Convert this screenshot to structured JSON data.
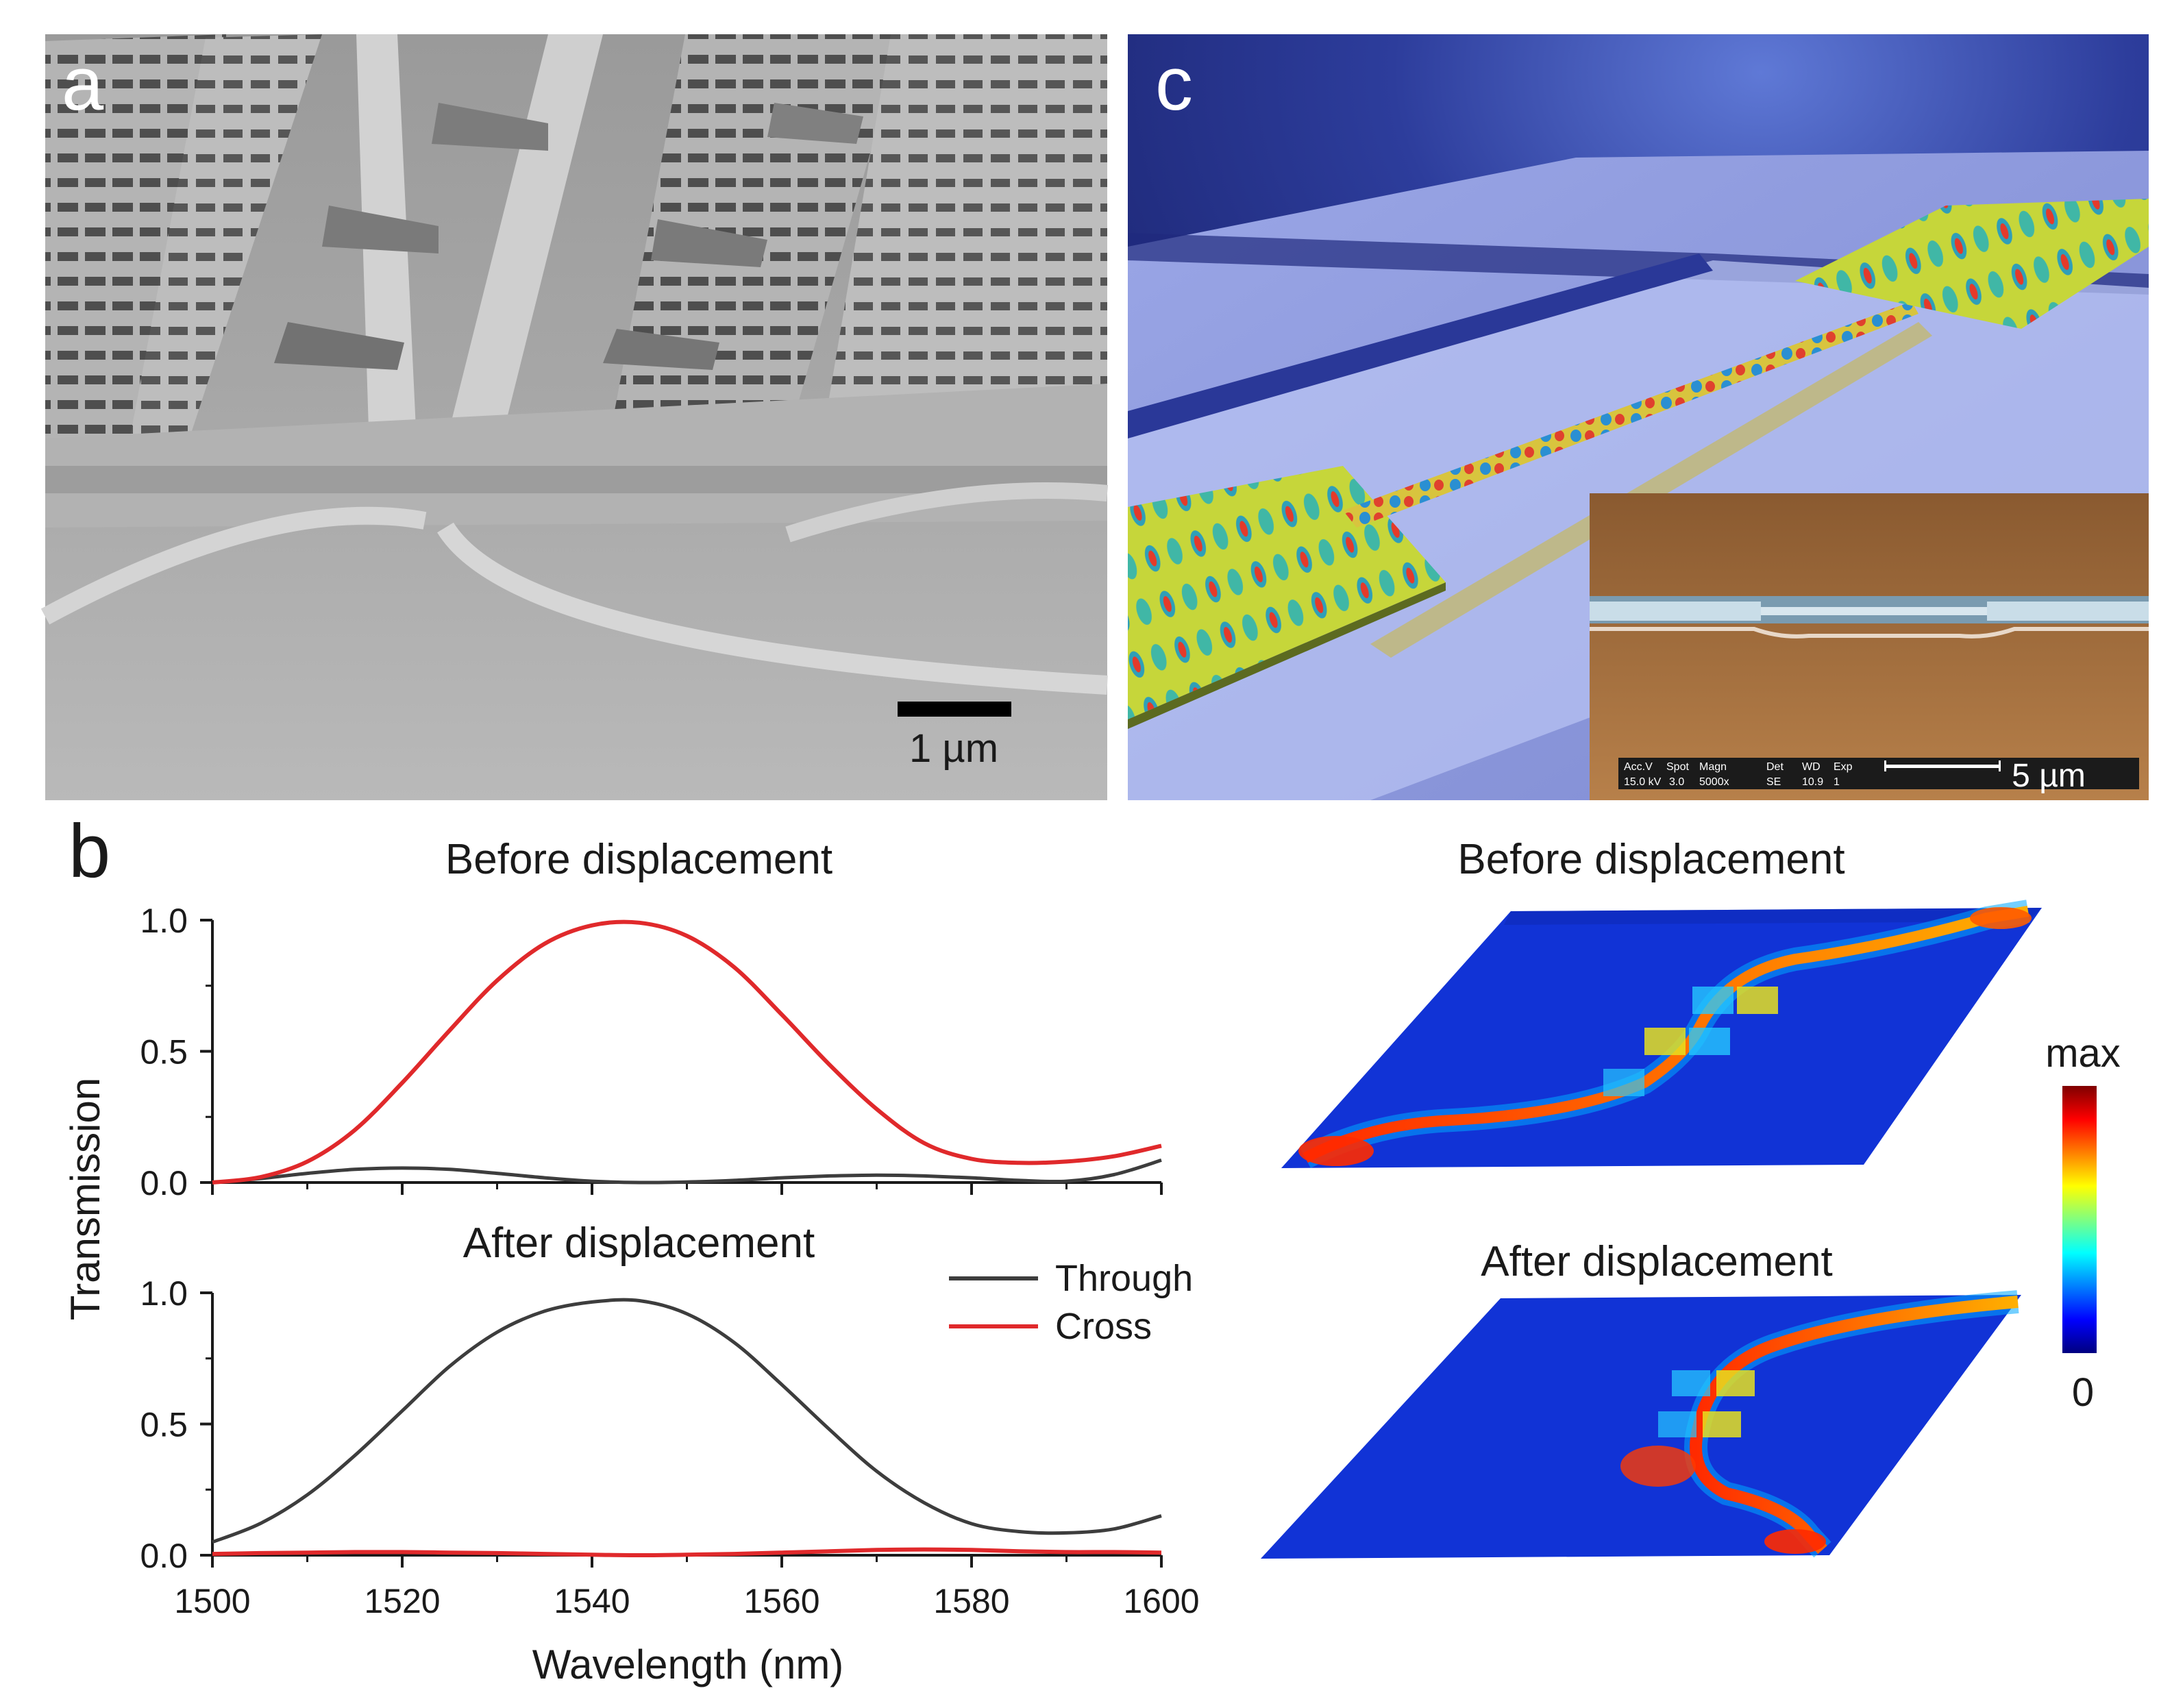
{
  "figure": {
    "panel_a": {
      "label": "a",
      "scalebar": "1 µm"
    },
    "panel_b": {
      "label": "b",
      "ylabel": "Transmission",
      "xlabel": "Wavelength (nm)",
      "legend": {
        "through": "Through",
        "cross": "Cross"
      },
      "colors": {
        "through": "#3d3d3d",
        "cross": "#e0292b"
      }
    },
    "panel_c": {
      "label": "c",
      "inset_readout": {
        "headers": [
          "Acc.V",
          "Spot",
          "Magn",
          "Det",
          "WD",
          "Exp"
        ],
        "values": [
          "15.0 kV",
          "3.0",
          "5000x",
          "SE",
          "10.9",
          "1"
        ]
      },
      "inset_scalebar": "5 µm"
    },
    "field_maps": {
      "top_title": "Before displacement",
      "bottom_title": "After displacement",
      "colorbar_max": "max",
      "colorbar_min": "0"
    }
  },
  "chart_data": [
    {
      "type": "line",
      "title": "Before displacement",
      "xlabel": "Wavelength (nm)",
      "ylabel": "Transmission",
      "xlim": [
        1500,
        1600
      ],
      "ylim": [
        0,
        1.0
      ],
      "xticks": [
        1500,
        1520,
        1540,
        1560,
        1580,
        1600
      ],
      "yticks": [
        0.0,
        0.5,
        1.0
      ],
      "yticklabels": [
        "0.0",
        "0.5",
        "1.0"
      ],
      "x": [
        1500,
        1505,
        1510,
        1515,
        1520,
        1525,
        1530,
        1535,
        1540,
        1545,
        1550,
        1555,
        1560,
        1565,
        1570,
        1575,
        1580,
        1585,
        1590,
        1595,
        1600
      ],
      "series": [
        {
          "name": "Through",
          "values": [
            0.0,
            0.015,
            0.035,
            0.05,
            0.055,
            0.05,
            0.035,
            0.018,
            0.005,
            0.0,
            0.002,
            0.008,
            0.018,
            0.025,
            0.028,
            0.025,
            0.018,
            0.008,
            0.005,
            0.03,
            0.085
          ]
        },
        {
          "name": "Cross",
          "values": [
            0.0,
            0.02,
            0.08,
            0.2,
            0.38,
            0.58,
            0.77,
            0.91,
            0.98,
            0.99,
            0.94,
            0.82,
            0.64,
            0.45,
            0.28,
            0.15,
            0.09,
            0.075,
            0.08,
            0.1,
            0.14
          ]
        }
      ]
    },
    {
      "type": "line",
      "title": "After displacement",
      "xlabel": "Wavelength (nm)",
      "ylabel": "Transmission",
      "xlim": [
        1500,
        1600
      ],
      "ylim": [
        0,
        1.0
      ],
      "xticks": [
        1500,
        1520,
        1540,
        1560,
        1580,
        1600
      ],
      "xticklabels": [
        "1500",
        "1520",
        "1540",
        "1560",
        "1580",
        "1600"
      ],
      "yticks": [
        0.0,
        0.5,
        1.0
      ],
      "yticklabels": [
        "0.0",
        "0.5",
        "1.0"
      ],
      "legend": "top-right",
      "x": [
        1500,
        1505,
        1510,
        1515,
        1520,
        1525,
        1530,
        1535,
        1540,
        1545,
        1550,
        1555,
        1560,
        1565,
        1570,
        1575,
        1580,
        1585,
        1590,
        1595,
        1600
      ],
      "series": [
        {
          "name": "Through",
          "values": [
            0.05,
            0.12,
            0.23,
            0.38,
            0.55,
            0.72,
            0.85,
            0.93,
            0.965,
            0.97,
            0.92,
            0.81,
            0.65,
            0.48,
            0.32,
            0.2,
            0.12,
            0.09,
            0.085,
            0.1,
            0.15
          ]
        },
        {
          "name": "Cross",
          "values": [
            0.005,
            0.008,
            0.01,
            0.012,
            0.012,
            0.01,
            0.008,
            0.005,
            0.002,
            0.0,
            0.002,
            0.005,
            0.01,
            0.015,
            0.02,
            0.022,
            0.02,
            0.015,
            0.012,
            0.012,
            0.01
          ]
        }
      ]
    }
  ]
}
